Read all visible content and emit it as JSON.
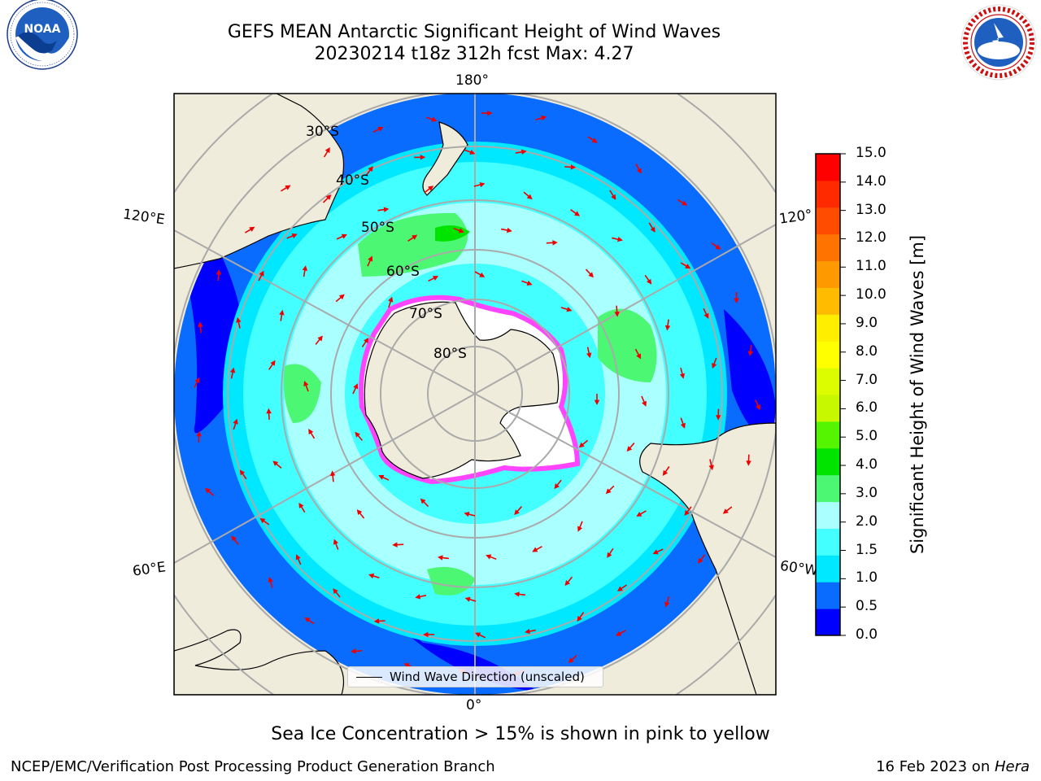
{
  "title_line1": "GEFS MEAN Antarctic Significant Height of Wind Waves",
  "title_line2_date": "20230214 t18z 312h fcst",
  "title_line2_max": "Max: 4.27",
  "logos": {
    "left": "noaa-logo",
    "right": "national-weather-service-logo"
  },
  "map": {
    "projection": "south-polar-stereographic",
    "longitude_labels": {
      "top": "180°",
      "left_upper": "120°E",
      "right_upper": "120°",
      "left_lower": "60°E",
      "right_lower": "60°W",
      "bottom": "0°"
    },
    "latitude_labels": [
      "30°S",
      "40°S",
      "50°S",
      "60°S",
      "70°S",
      "80°S"
    ],
    "land_color": "#efecdc",
    "arrow_color": "#ee0000"
  },
  "legend_label": "Wind Wave Direction (unscaled)",
  "colorbar": {
    "title": "Significant Height of Wind Waves [m]",
    "ticks": [
      "0.0",
      "0.5",
      "1.0",
      "1.5",
      "2.0",
      "3.0",
      "4.0",
      "5.0",
      "6.0",
      "7.0",
      "8.0",
      "9.0",
      "10.0",
      "11.0",
      "12.0",
      "13.0",
      "14.0",
      "15.0"
    ],
    "colors": [
      "#0000ff",
      "#0a6bff",
      "#00e8ff",
      "#44ffff",
      "#aaffff",
      "#4cf773",
      "#00e400",
      "#55f400",
      "#c8f800",
      "#dcfc00",
      "#ffff00",
      "#ffee00",
      "#ffbb00",
      "#ff9900",
      "#ff7400",
      "#ff4c00",
      "#ff2a00",
      "#ff0000"
    ]
  },
  "footnote": "Sea Ice Concentration > 15% is shown in pink to yellow",
  "footer_left": "NCEP/EMC/Verification Post Processing Product Generation Branch",
  "footer_date": "16 Feb 2023 on ",
  "footer_machine": "Hera"
}
